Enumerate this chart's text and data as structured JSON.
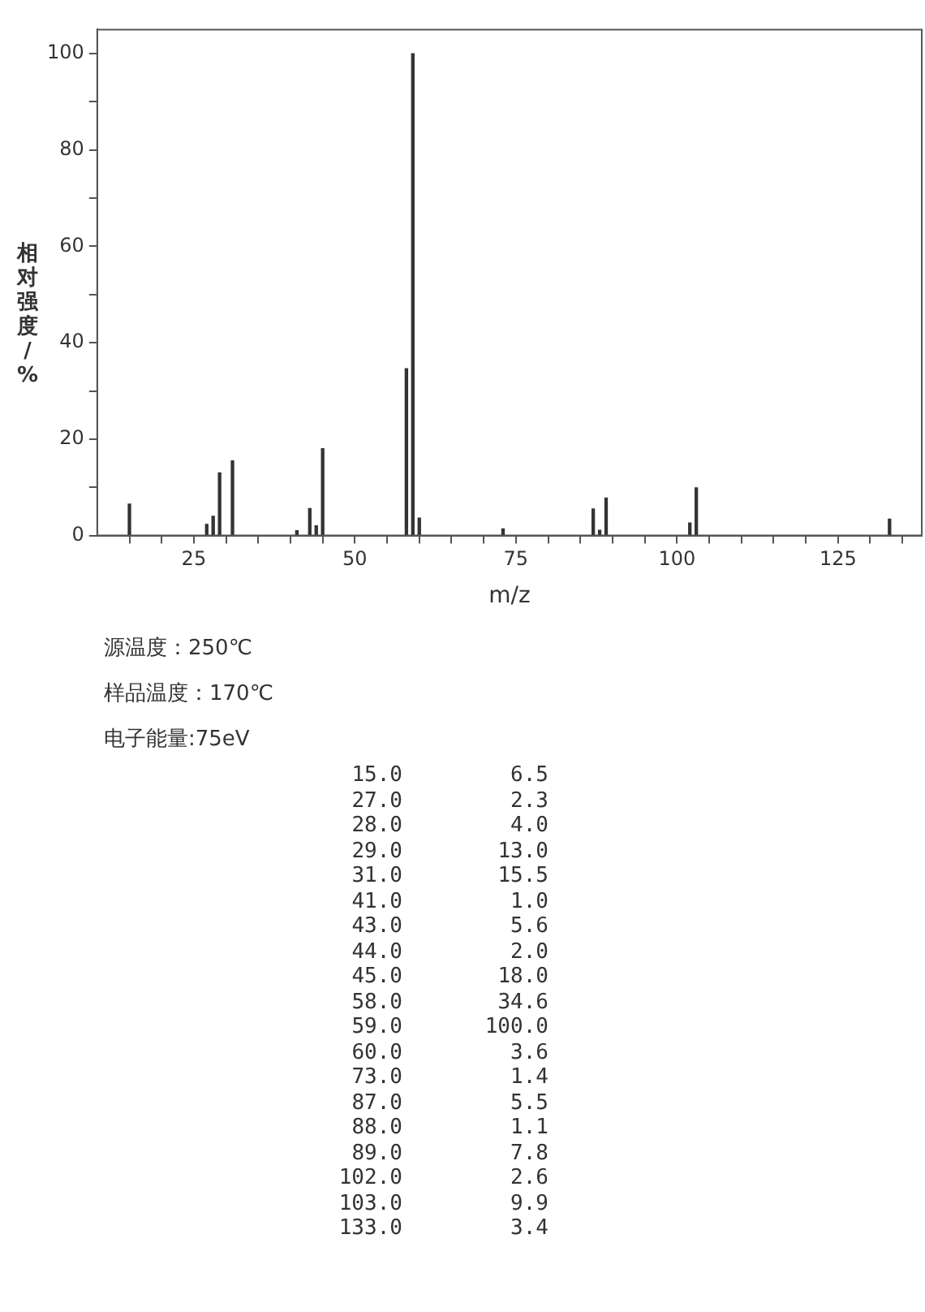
{
  "chart_data": [
    {
      "type": "bar",
      "xlabel": "m/z",
      "ylabel": "相对强度/%",
      "x": [
        15,
        27,
        28,
        29,
        31,
        41,
        43,
        44,
        45,
        58,
        59,
        60,
        73,
        87,
        88,
        89,
        102,
        103,
        133
      ],
      "values": [
        6.5,
        2.3,
        4.0,
        13.0,
        15.5,
        1.0,
        5.6,
        2.0,
        18.0,
        34.6,
        100.0,
        3.6,
        1.4,
        5.5,
        1.1,
        7.8,
        2.6,
        9.9,
        3.4
      ],
      "color": "#333333",
      "xlim": [
        10,
        138
      ],
      "xticks": [
        {
          "value": 15,
          "label": null
        },
        {
          "value": 20,
          "label": null
        },
        25,
        {
          "value": 30,
          "label": null
        },
        {
          "value": 35,
          "label": null
        },
        {
          "value": 40,
          "label": null
        },
        {
          "value": 45,
          "label": null
        },
        50,
        {
          "value": 55,
          "label": null
        },
        {
          "value": 60,
          "label": null
        },
        {
          "value": 65,
          "label": null
        },
        {
          "value": 70,
          "label": null
        },
        75,
        {
          "value": 80,
          "label": null
        },
        {
          "value": 85,
          "label": null
        },
        {
          "value": 90,
          "label": null
        },
        {
          "value": 95,
          "label": null
        },
        100,
        {
          "value": 105,
          "label": null
        },
        {
          "value": 110,
          "label": null
        },
        {
          "value": 115,
          "label": null
        },
        {
          "value": 120,
          "label": null
        },
        125,
        {
          "value": 130,
          "label": null
        },
        {
          "value": 135,
          "label": null
        }
      ],
      "ylim": [
        0,
        105
      ],
      "yticks": [
        0,
        {
          "value": 10,
          "label": null
        },
        20,
        {
          "value": 30,
          "label": null
        },
        40,
        {
          "value": 50,
          "label": null
        },
        60,
        {
          "value": 70,
          "label": null
        },
        80,
        {
          "value": 90,
          "label": null
        },
        100
      ],
      "grid": false,
      "legend": false,
      "annotations": [
        "源温度：250℃",
        "样品温度：170℃",
        "电子能量:75eV"
      ]
    },
    {
      "type": "other",
      "annotations": [
        "15.0",
        "6.5",
        "27.0",
        "2.3",
        "28.0",
        "4.0",
        "29.0",
        "13.0",
        "31.0",
        "15.5",
        "41.0",
        "1.0",
        "43.0",
        "5.6",
        "44.0",
        "2.0",
        "45.0",
        "18.0",
        "58.0",
        "34.6",
        "59.0",
        "100.0",
        "60.0",
        "3.6",
        "73.0",
        "1.4",
        "87.0",
        "5.5",
        "88.0",
        "1.1",
        "89.0",
        "7.8",
        "102.0",
        "2.6",
        "103.0",
        "9.9",
        "133.0",
        "3.4"
      ]
    }
  ]
}
